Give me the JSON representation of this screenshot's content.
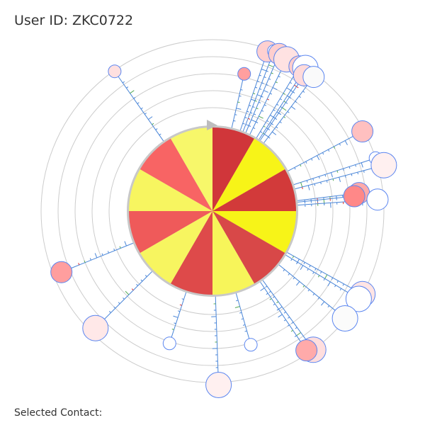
{
  "header": {
    "user_id_text": "User ID: ZKC0722"
  },
  "footer": {
    "selected_contact_label": "Selected Contact:"
  },
  "wheel": {
    "segment_count": 12,
    "segment_colors": [
      "#d0363a",
      "#f7f418",
      "#d23a3a",
      "#f7f418",
      "#d84848",
      "#f7f55a",
      "#de4a4a",
      "#f7f560",
      "#ef5a5a",
      "#f7f560",
      "#f86464",
      "#f7f76a"
    ],
    "ring_count": 5,
    "has_direction_marker": true
  },
  "colors": {
    "ring_stroke": "#cccccc",
    "spoke_stroke": "#4a86d8",
    "contact_stroke": "#5b86f0",
    "tick_blue": "#4a86d8",
    "tick_green": "#55aa55",
    "tick_red": "#dd3333"
  },
  "contacts": [
    {
      "angle_deg": 19,
      "distance": 0.97,
      "size": 2,
      "fill": "#ffd0d0"
    },
    {
      "angle_deg": 21,
      "distance": 1.0,
      "size": 1,
      "fill": "#ffffff"
    },
    {
      "angle_deg": 23,
      "distance": 0.99,
      "size": 2,
      "fill": "#ffcece"
    },
    {
      "angle_deg": 26,
      "distance": 0.97,
      "size": 3,
      "fill": "#ffe2e2"
    },
    {
      "angle_deg": 31,
      "distance": 0.97,
      "size": 2,
      "fill": "#ffcccc"
    },
    {
      "angle_deg": 33,
      "distance": 0.99,
      "size": 3,
      "fill": "#ffffff"
    },
    {
      "angle_deg": 34,
      "distance": 0.91,
      "size": 2,
      "fill": "#ffdada"
    },
    {
      "angle_deg": 37,
      "distance": 0.96,
      "size": 2,
      "fill": "#fafafa"
    },
    {
      "angle_deg": 13,
      "distance": 0.64,
      "size": 1,
      "fill": "#ff9f9f"
    },
    {
      "angle_deg": -35,
      "distance": 0.99,
      "size": 1,
      "fill": "#ffe0e0"
    },
    {
      "angle_deg": 62,
      "distance": 0.98,
      "size": 2,
      "fill": "#ffc0c0"
    },
    {
      "angle_deg": 72,
      "distance": 1.0,
      "size": 1,
      "fill": "#ffffff"
    },
    {
      "angle_deg": 75,
      "distance": 1.07,
      "size": 3,
      "fill": "#fff0f0"
    },
    {
      "angle_deg": 83,
      "distance": 0.72,
      "size": 2,
      "fill": "#ffaaaa"
    },
    {
      "angle_deg": 84,
      "distance": 0.66,
      "size": 2,
      "fill": "#ff8888"
    },
    {
      "angle_deg": 86,
      "distance": 0.93,
      "size": 2,
      "fill": "#ffffff"
    },
    {
      "angle_deg": -112,
      "distance": 0.9,
      "size": 2,
      "fill": "#ff9e9e"
    },
    {
      "angle_deg": 119,
      "distance": 1.0,
      "size": 3,
      "fill": "#ffe4e4"
    },
    {
      "angle_deg": 121,
      "distance": 0.99,
      "size": 3,
      "fill": "#ffffff"
    },
    {
      "angle_deg": 129,
      "distance": 0.99,
      "size": 3,
      "fill": "#fbfbfb"
    },
    {
      "angle_deg": 144,
      "distance": 1.0,
      "size": 3,
      "fill": "#ffdede"
    },
    {
      "angle_deg": 146,
      "distance": 0.96,
      "size": 2,
      "fill": "#ffaaaa"
    },
    {
      "angle_deg": 164,
      "distance": 0.62,
      "size": 1,
      "fill": "#ffffff"
    },
    {
      "angle_deg": 178,
      "distance": 1.03,
      "size": 3,
      "fill": "#fff0f0"
    },
    {
      "angle_deg": -162,
      "distance": 0.62,
      "size": 1,
      "fill": "#ffffff"
    },
    {
      "angle_deg": -135,
      "distance": 0.93,
      "size": 3,
      "fill": "#ffe8e8"
    }
  ]
}
